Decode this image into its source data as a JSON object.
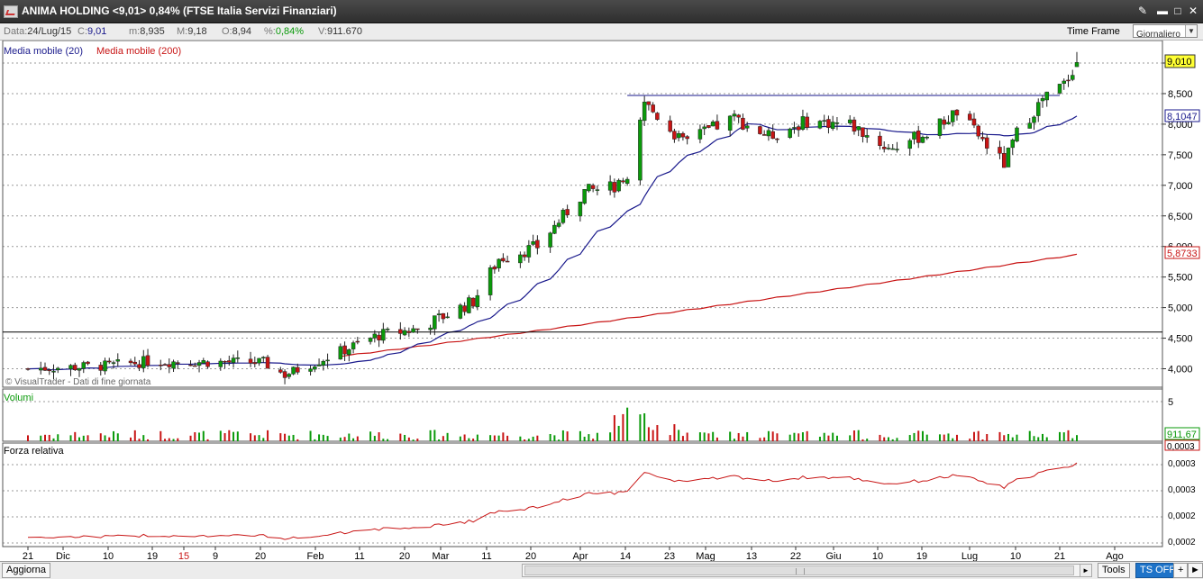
{
  "window": {
    "title": "ANIMA HOLDING <9,01> 0,84% (FTSE Italia Servizi Finanziari)",
    "icons": [
      "app-chart-icon",
      "tools-icon",
      "minimize-icon",
      "maximize-icon",
      "close-icon"
    ]
  },
  "infobar": {
    "date_label": "Data:",
    "date_value": "24/Lug/15",
    "close_label": "C:",
    "close_value": "9,01",
    "min_label": "m:",
    "min_value": "8,935",
    "max_label": "M:",
    "max_value": "9,18",
    "open_label": "O:",
    "open_value": "8,94",
    "pct_label": "%:",
    "pct_value": "0,84%",
    "vol_label": "V:",
    "vol_value": "911.670",
    "timeframe_label": "Time Frame",
    "timeframe_value": "Giornaliero"
  },
  "legend": {
    "ma20": "Media mobile (20)",
    "ma200": "Media mobile (200)",
    "watermark": "© VisualTrader - Dati di fine giornata",
    "volume_title": "Volumi",
    "rs_title": "Forza relativa"
  },
  "price_axis": {
    "ticks": [
      "9,000",
      "8,500",
      "8,000",
      "7,500",
      "7,000",
      "6,500",
      "6,000",
      "5,500",
      "5,000",
      "4,500",
      "4,000"
    ],
    "last_price_tag": "9,010",
    "ma20_tag": "8,1047",
    "ma200_tag": "5,8733"
  },
  "volume_axis": {
    "tick": "5",
    "last_volume_tag": "911,67"
  },
  "rs_axis": {
    "ticks": [
      "0,0003",
      "0,0003",
      "0,0002",
      "0,0002"
    ],
    "top_tag": "0,0003"
  },
  "x_axis": {
    "labels": [
      "21",
      "Dic",
      "10",
      "19",
      "15",
      "9",
      "20",
      "Feb",
      "11",
      "20",
      "Mar",
      "11",
      "20",
      "Apr",
      "14",
      "23",
      "Mag",
      "13",
      "22",
      "Giu",
      "10",
      "19",
      "Lug",
      "10",
      "21",
      "Ago"
    ]
  },
  "footer": {
    "refresh_button": "Aggiorna",
    "tools_button": "Tools",
    "ts_button": "TS OFF",
    "plus_button": "+",
    "arrow_button": "►"
  },
  "colors": {
    "ma20": "#1a1a8c",
    "ma200": "#c81414",
    "up": "#0a9a0a",
    "down": "#c81414",
    "highlight": "#ffff33",
    "rs_line": "#c81414",
    "resistance_line": "#1a1a8c"
  },
  "chart_data": {
    "type": "candlestick",
    "symbol": "ANIMA HOLDING",
    "interval": "daily",
    "x_range": [
      "2014-11-21",
      "2015-07-24"
    ],
    "y_range": [
      3.7,
      9.3
    ],
    "x_tick_labels": [
      "21",
      "Dic",
      "10",
      "19",
      "15",
      "9",
      "20",
      "Feb",
      "11",
      "20",
      "Mar",
      "11",
      "20",
      "Apr",
      "14",
      "23",
      "Mag",
      "13",
      "22",
      "Giu",
      "10",
      "19",
      "Lug",
      "10",
      "21",
      "Ago"
    ],
    "price_waypoints": [
      {
        "date": "2014-11-21",
        "close": 4.0
      },
      {
        "date": "2014-12-10",
        "close": 4.05
      },
      {
        "date": "2014-12-19",
        "close": 4.12
      },
      {
        "date": "2015-01-15",
        "close": 4.1
      },
      {
        "date": "2015-01-20",
        "close": 3.9
      },
      {
        "date": "2015-02-01",
        "close": 4.25
      },
      {
        "date": "2015-02-11",
        "close": 4.55
      },
      {
        "date": "2015-02-20",
        "close": 4.65
      },
      {
        "date": "2015-03-05",
        "close": 5.1
      },
      {
        "date": "2015-03-11",
        "close": 5.8
      },
      {
        "date": "2015-03-20",
        "close": 6.0
      },
      {
        "date": "2015-03-31",
        "close": 6.9
      },
      {
        "date": "2015-04-10",
        "close": 7.0
      },
      {
        "date": "2015-04-14",
        "close": 8.35
      },
      {
        "date": "2015-04-23",
        "close": 7.7
      },
      {
        "date": "2015-05-05",
        "close": 8.1
      },
      {
        "date": "2015-05-13",
        "close": 7.8
      },
      {
        "date": "2015-05-22",
        "close": 8.05
      },
      {
        "date": "2015-06-01",
        "close": 8.0
      },
      {
        "date": "2015-06-10",
        "close": 7.6
      },
      {
        "date": "2015-06-19",
        "close": 7.85
      },
      {
        "date": "2015-06-26",
        "close": 8.2
      },
      {
        "date": "2015-07-07",
        "close": 7.35
      },
      {
        "date": "2015-07-10",
        "close": 7.85
      },
      {
        "date": "2015-07-16",
        "close": 8.4
      },
      {
        "date": "2015-07-21",
        "close": 8.65
      },
      {
        "date": "2015-07-24",
        "close": 9.01
      }
    ],
    "last_bar": {
      "date": "2015-07-24",
      "open": 8.94,
      "high": 9.18,
      "low": 8.935,
      "close": 9.01,
      "change_pct": 0.84,
      "volume": 911670
    },
    "moving_averages": [
      {
        "name": "Media mobile (20)",
        "last": 8.1047
      },
      {
        "name": "Media mobile (200)",
        "last": 5.8733
      }
    ],
    "horizontal_lines": [
      {
        "label": "resistance",
        "value": 8.47,
        "from": "2015-04-10",
        "to": "2015-07-20"
      },
      {
        "label": "support",
        "value": 4.6
      }
    ]
  }
}
